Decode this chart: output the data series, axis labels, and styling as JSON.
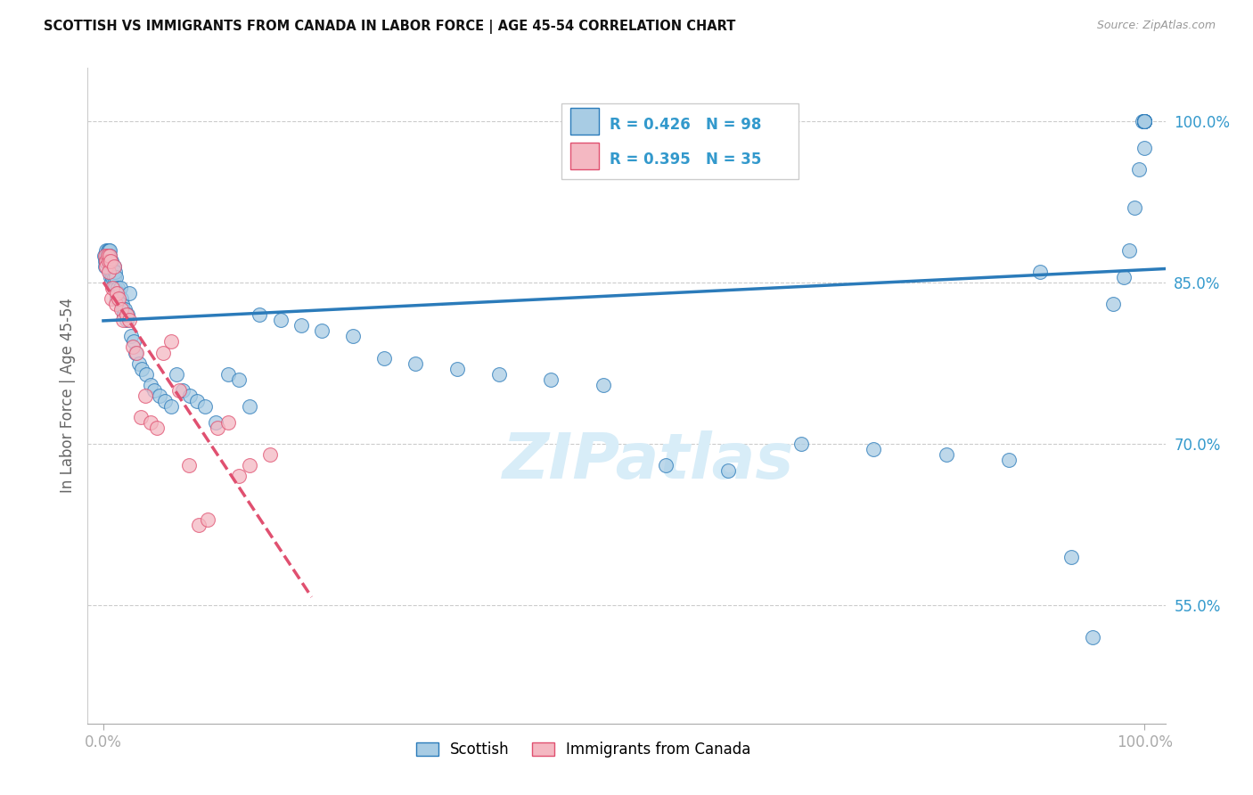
{
  "title": "SCOTTISH VS IMMIGRANTS FROM CANADA IN LABOR FORCE | AGE 45-54 CORRELATION CHART",
  "source": "Source: ZipAtlas.com",
  "ylabel": "In Labor Force | Age 45-54",
  "legend_label_1": "Scottish",
  "legend_label_2": "Immigrants from Canada",
  "r1": 0.426,
  "n1": 98,
  "r2": 0.395,
  "n2": 35,
  "color_blue": "#a8cce4",
  "color_pink": "#f4b8c2",
  "line_blue": "#2b7bba",
  "line_pink": "#e05070",
  "trendline_blue": "#2b7bba",
  "trendline_pink": "#e05070",
  "background": "#ffffff",
  "grid_color": "#cccccc",
  "tick_color": "#3399cc",
  "yticks": [
    0.55,
    0.7,
    0.85,
    1.0
  ],
  "ytick_labels": [
    "55.0%",
    "70.0%",
    "85.0%",
    "100.0%"
  ],
  "xmin": 0.0,
  "xmax": 1.0,
  "ymin": 0.44,
  "ymax": 1.05,
  "watermark": "ZIPatlas",
  "watermark_color": "#d8edf8",
  "blue_x": [
    0.001,
    0.002,
    0.002,
    0.003,
    0.003,
    0.003,
    0.004,
    0.004,
    0.004,
    0.005,
    0.005,
    0.005,
    0.006,
    0.006,
    0.006,
    0.006,
    0.007,
    0.007,
    0.007,
    0.008,
    0.008,
    0.008,
    0.009,
    0.009,
    0.01,
    0.01,
    0.01,
    0.011,
    0.011,
    0.012,
    0.013,
    0.013,
    0.014,
    0.015,
    0.016,
    0.017,
    0.018,
    0.019,
    0.02,
    0.021,
    0.022,
    0.023,
    0.025,
    0.027,
    0.029,
    0.031,
    0.034,
    0.037,
    0.041,
    0.045,
    0.049,
    0.054,
    0.059,
    0.065,
    0.07,
    0.076,
    0.083,
    0.09,
    0.098,
    0.108,
    0.12,
    0.13,
    0.14,
    0.15,
    0.17,
    0.19,
    0.21,
    0.24,
    0.27,
    0.3,
    0.34,
    0.38,
    0.43,
    0.48,
    0.54,
    0.6,
    0.67,
    0.74,
    0.81,
    0.87,
    0.9,
    0.93,
    0.95,
    0.97,
    0.98,
    0.985,
    0.99,
    0.995,
    0.998,
    1.0,
    1.0,
    1.0,
    1.0,
    1.0,
    1.0,
    1.0,
    1.0,
    1.0
  ],
  "blue_y": [
    0.875,
    0.87,
    0.865,
    0.88,
    0.875,
    0.87,
    0.88,
    0.875,
    0.87,
    0.88,
    0.875,
    0.87,
    0.88,
    0.875,
    0.87,
    0.86,
    0.87,
    0.865,
    0.855,
    0.87,
    0.86,
    0.85,
    0.865,
    0.855,
    0.865,
    0.855,
    0.845,
    0.86,
    0.845,
    0.855,
    0.84,
    0.835,
    0.845,
    0.84,
    0.845,
    0.835,
    0.83,
    0.825,
    0.82,
    0.825,
    0.815,
    0.82,
    0.84,
    0.8,
    0.795,
    0.785,
    0.775,
    0.77,
    0.765,
    0.755,
    0.75,
    0.745,
    0.74,
    0.735,
    0.765,
    0.75,
    0.745,
    0.74,
    0.735,
    0.72,
    0.765,
    0.76,
    0.735,
    0.82,
    0.815,
    0.81,
    0.805,
    0.8,
    0.78,
    0.775,
    0.77,
    0.765,
    0.76,
    0.755,
    0.68,
    0.675,
    0.7,
    0.695,
    0.69,
    0.685,
    0.86,
    0.595,
    0.52,
    0.83,
    0.855,
    0.88,
    0.92,
    0.955,
    1.0,
    1.0,
    1.0,
    1.0,
    1.0,
    1.0,
    1.0,
    1.0,
    1.0,
    0.975
  ],
  "pink_x": [
    0.002,
    0.003,
    0.003,
    0.004,
    0.005,
    0.005,
    0.006,
    0.007,
    0.008,
    0.009,
    0.01,
    0.012,
    0.013,
    0.015,
    0.017,
    0.019,
    0.022,
    0.025,
    0.028,
    0.032,
    0.036,
    0.04,
    0.045,
    0.051,
    0.057,
    0.065,
    0.073,
    0.082,
    0.092,
    0.1,
    0.11,
    0.12,
    0.13,
    0.14,
    0.16
  ],
  "pink_y": [
    0.875,
    0.87,
    0.865,
    0.875,
    0.87,
    0.86,
    0.875,
    0.87,
    0.835,
    0.845,
    0.865,
    0.83,
    0.84,
    0.835,
    0.825,
    0.815,
    0.82,
    0.815,
    0.79,
    0.785,
    0.725,
    0.745,
    0.72,
    0.715,
    0.785,
    0.795,
    0.75,
    0.68,
    0.625,
    0.63,
    0.715,
    0.72,
    0.67,
    0.68,
    0.69
  ]
}
